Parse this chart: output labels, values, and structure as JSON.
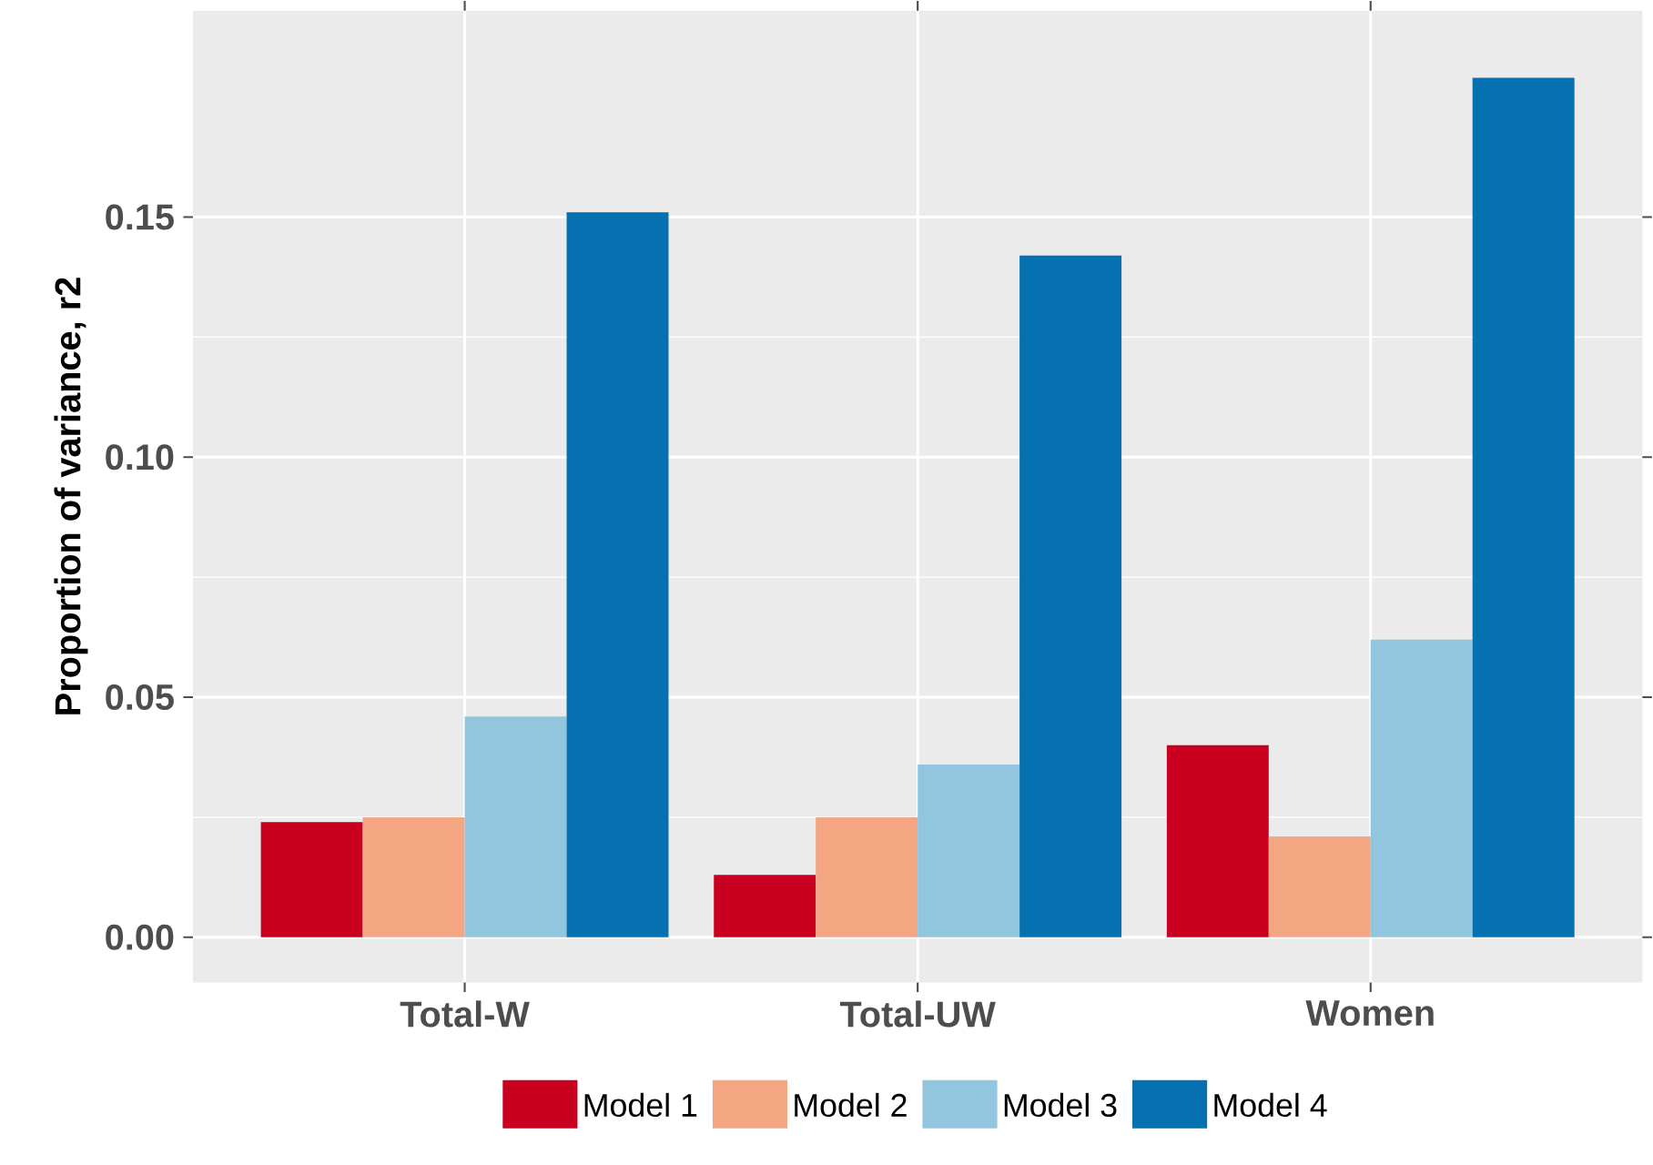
{
  "chart_data": {
    "type": "bar",
    "ylabel": "Proportion of variance, r2",
    "categories": [
      "Total-W",
      "Total-UW",
      "Women"
    ],
    "series": [
      {
        "name": "Model 1",
        "color": "#ca0020",
        "values": [
          0.024,
          0.013,
          0.04
        ]
      },
      {
        "name": "Model 2",
        "color": "#f4a582",
        "values": [
          0.025,
          0.025,
          0.021
        ]
      },
      {
        "name": "Model 3",
        "color": "#92c5de",
        "values": [
          0.046,
          0.036,
          0.062
        ]
      },
      {
        "name": "Model 4",
        "color": "#0571b0",
        "values": [
          0.151,
          0.142,
          0.179
        ]
      }
    ],
    "ylim": [
      -0.0094,
      0.193
    ],
    "yticks": [
      {
        "value": 0,
        "label": "0.00"
      },
      {
        "value": 0.05,
        "label": "0.05"
      },
      {
        "value": 0.1,
        "label": "0.10"
      },
      {
        "value": 0.15,
        "label": "0.15"
      }
    ],
    "grid": true,
    "legend": "bottom"
  }
}
